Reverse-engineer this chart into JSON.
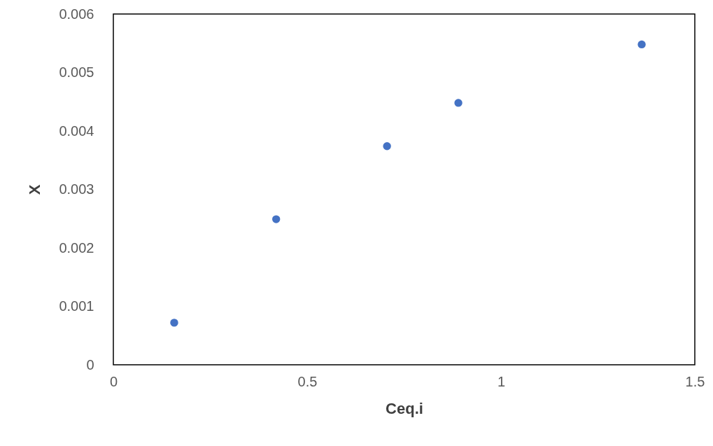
{
  "chart_data": {
    "type": "scatter",
    "xlabel": "Ceq.i",
    "ylabel": "X",
    "x": [
      0.157,
      0.42,
      0.706,
      0.89,
      1.363
    ],
    "series": [
      {
        "color": "#4472c4",
        "values": [
          0.00072,
          0.00249,
          0.00374,
          0.00448,
          0.00548
        ]
      }
    ],
    "xlim": [
      0,
      1.5
    ],
    "xticks": [
      0,
      0.5,
      1,
      1.5
    ],
    "ylim": [
      0,
      0.006
    ],
    "yticks": [
      0,
      0.001,
      0.002,
      0.003,
      0.004,
      0.005,
      0.006
    ],
    "grid": false,
    "legend": false,
    "marker": "circle"
  }
}
